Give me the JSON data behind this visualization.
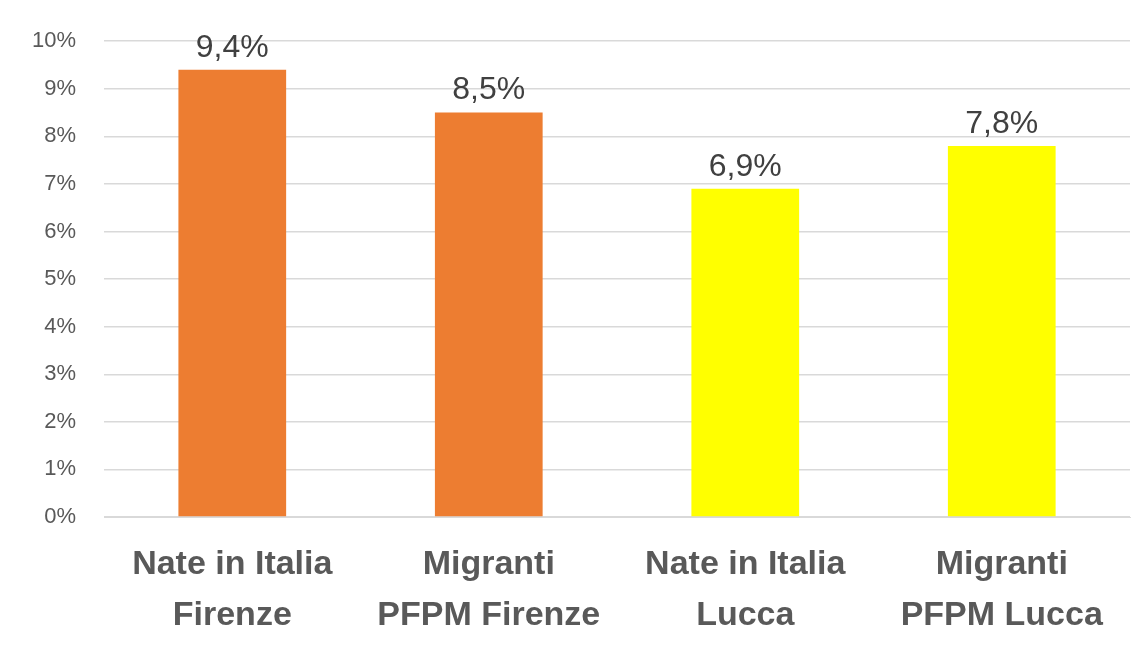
{
  "chart_data": {
    "type": "bar",
    "categories": [
      "Nate in Italia\nFirenze",
      "Migranti\nPFPM Firenze",
      "Nate in Italia\nLucca",
      "Migranti\nPFPM Lucca"
    ],
    "values": [
      9.4,
      8.5,
      6.9,
      7.8
    ],
    "colors": [
      "#ed7d31",
      "#ed7d31",
      "#ffff00",
      "#ffff00"
    ],
    "value_labels": [
      "9,4%",
      "8,5%",
      "6,9%",
      "7,8%"
    ],
    "ylim": [
      0,
      10
    ],
    "yticks": [
      {
        "value": 0,
        "label": "0%"
      },
      {
        "value": 1,
        "label": "1%"
      },
      {
        "value": 2,
        "label": "2%"
      },
      {
        "value": 3,
        "label": "3%"
      },
      {
        "value": 4,
        "label": "4%"
      },
      {
        "value": 5,
        "label": "5%"
      },
      {
        "value": 6,
        "label": "6%"
      },
      {
        "value": 7,
        "label": "7%"
      },
      {
        "value": 8,
        "label": "8%"
      },
      {
        "value": 9,
        "label": "9%"
      },
      {
        "value": 10,
        "label": "10%"
      }
    ],
    "grid": "y",
    "legend": false
  }
}
